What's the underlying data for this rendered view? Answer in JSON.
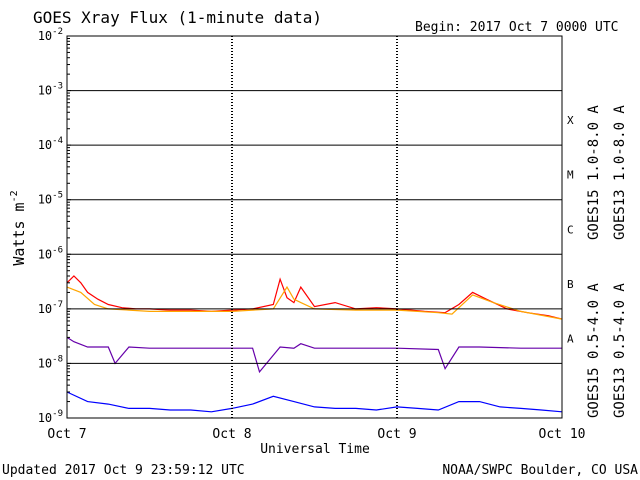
{
  "chart_data": {
    "type": "line",
    "title": "GOES Xray Flux (1-minute data)",
    "begin_label": "Begin:  2017 Oct 7 0000 UTC",
    "xlabel": "Universal Time",
    "ylabel": "Watts m",
    "ylabel_exponent": "-2",
    "y_scale": "log",
    "ylim": [
      1e-09,
      0.01
    ],
    "xlim": [
      "2017-10-07T00:00",
      "2017-10-10T00:00"
    ],
    "x_ticks": [
      {
        "label": "Oct 7",
        "value": "2017-10-07T00:00"
      },
      {
        "label": "Oct 8",
        "value": "2017-10-08T00:00"
      },
      {
        "label": "Oct 9",
        "value": "2017-10-09T00:00"
      },
      {
        "label": "Oct 10",
        "value": "2017-10-10T00:00"
      }
    ],
    "y_ticks": [
      {
        "base": "10",
        "exp": "-2",
        "value": 0.01
      },
      {
        "base": "10",
        "exp": "-3",
        "value": 0.001
      },
      {
        "base": "10",
        "exp": "-4",
        "value": 0.0001
      },
      {
        "base": "10",
        "exp": "-5",
        "value": 1e-05
      },
      {
        "base": "10",
        "exp": "-6",
        "value": 1e-06
      },
      {
        "base": "10",
        "exp": "-7",
        "value": 1e-07
      },
      {
        "base": "10",
        "exp": "-8",
        "value": 1e-08
      },
      {
        "base": "10",
        "exp": "-9",
        "value": 1e-09
      }
    ],
    "flare_classes": [
      {
        "label": "X",
        "value": 0.0001
      },
      {
        "label": "M",
        "value": 1e-05
      },
      {
        "label": "C",
        "value": 1e-06
      },
      {
        "label": "B",
        "value": 1e-07
      },
      {
        "label": "A",
        "value": 1e-08
      }
    ],
    "grid": true,
    "series": [
      {
        "name": "GOES15 1.0-8.0 A",
        "color": "#ff0000",
        "x": [
          "2017-10-07T00:00",
          "2017-10-07T01:00",
          "2017-10-07T02:00",
          "2017-10-07T03:00",
          "2017-10-07T04:30",
          "2017-10-07T06:00",
          "2017-10-07T08:00",
          "2017-10-07T10:00",
          "2017-10-07T12:00",
          "2017-10-07T15:00",
          "2017-10-07T18:00",
          "2017-10-07T21:00",
          "2017-10-08T00:00",
          "2017-10-08T03:00",
          "2017-10-08T06:00",
          "2017-10-08T07:00",
          "2017-10-08T08:00",
          "2017-10-08T09:00",
          "2017-10-08T10:00",
          "2017-10-08T12:00",
          "2017-10-08T15:00",
          "2017-10-08T18:00",
          "2017-10-08T21:00",
          "2017-10-09T00:00",
          "2017-10-09T04:00",
          "2017-10-09T07:00",
          "2017-10-09T09:00",
          "2017-10-09T11:00",
          "2017-10-09T13:00",
          "2017-10-09T16:00",
          "2017-10-09T19:00",
          "2017-10-09T22:00",
          "2017-10-10T00:00"
        ],
        "y": [
          3e-07,
          4e-07,
          3e-07,
          2e-07,
          1.5e-07,
          1.2e-07,
          1.05e-07,
          1e-07,
          1e-07,
          9.5e-08,
          9.5e-08,
          9e-08,
          9.5e-08,
          1e-07,
          1.2e-07,
          3.5e-07,
          1.6e-07,
          1.3e-07,
          2.5e-07,
          1.1e-07,
          1.3e-07,
          1e-07,
          1.05e-07,
          1e-07,
          9e-08,
          8.5e-08,
          1.2e-07,
          2e-07,
          1.5e-07,
          1e-07,
          8.5e-08,
          7.5e-08,
          6.5e-08
        ]
      },
      {
        "name": "GOES13 1.0-8.0 A",
        "color": "#ffa500",
        "x": [
          "2017-10-07T00:00",
          "2017-10-07T02:00",
          "2017-10-07T04:00",
          "2017-10-07T06:00",
          "2017-10-07T09:00",
          "2017-10-07T12:00",
          "2017-10-07T18:00",
          "2017-10-08T00:00",
          "2017-10-08T06:00",
          "2017-10-08T08:00",
          "2017-10-08T09:00",
          "2017-10-08T10:00",
          "2017-10-08T12:00",
          "2017-10-08T18:00",
          "2017-10-09T00:00",
          "2017-10-09T06:00",
          "2017-10-09T08:00",
          "2017-10-09T11:00",
          "2017-10-09T14:00",
          "2017-10-09T18:00",
          "2017-10-10T00:00"
        ],
        "y": [
          2.5e-07,
          2e-07,
          1.2e-07,
          1e-07,
          9.5e-08,
          9e-08,
          9e-08,
          9e-08,
          1e-07,
          2.5e-07,
          1.5e-07,
          1.3e-07,
          1e-07,
          9.5e-08,
          9.5e-08,
          8.5e-08,
          8e-08,
          1.8e-07,
          1.3e-07,
          9e-08,
          6.5e-08
        ]
      },
      {
        "name": "GOES15 0.5-4.0 A",
        "color": "#0000ff",
        "x": [
          "2017-10-07T00:00",
          "2017-10-07T03:00",
          "2017-10-07T06:00",
          "2017-10-07T09:00",
          "2017-10-07T12:00",
          "2017-10-07T15:00",
          "2017-10-07T18:00",
          "2017-10-07T21:00",
          "2017-10-08T00:00",
          "2017-10-08T03:00",
          "2017-10-08T06:00",
          "2017-10-08T09:00",
          "2017-10-08T12:00",
          "2017-10-08T15:00",
          "2017-10-08T18:00",
          "2017-10-08T21:00",
          "2017-10-09T00:00",
          "2017-10-09T03:00",
          "2017-10-09T06:00",
          "2017-10-09T09:00",
          "2017-10-09T12:00",
          "2017-10-09T15:00",
          "2017-10-09T18:00",
          "2017-10-09T21:00",
          "2017-10-10T00:00"
        ],
        "y": [
          3e-09,
          2e-09,
          1.8e-09,
          1.5e-09,
          1.5e-09,
          1.4e-09,
          1.4e-09,
          1.3e-09,
          1.5e-09,
          1.8e-09,
          2.5e-09,
          2e-09,
          1.6e-09,
          1.5e-09,
          1.5e-09,
          1.4e-09,
          1.6e-09,
          1.5e-09,
          1.4e-09,
          2e-09,
          2e-09,
          1.6e-09,
          1.5e-09,
          1.4e-09,
          1.3e-09
        ]
      },
      {
        "name": "GOES13 0.5-4.0 A",
        "color": "#6600aa",
        "x": [
          "2017-10-07T00:00",
          "2017-10-07T01:00",
          "2017-10-07T03:00",
          "2017-10-07T06:00",
          "2017-10-07T07:00",
          "2017-10-07T09:00",
          "2017-10-07T12:00",
          "2017-10-07T18:00",
          "2017-10-08T00:00",
          "2017-10-08T03:00",
          "2017-10-08T04:00",
          "2017-10-08T07:00",
          "2017-10-08T09:00",
          "2017-10-08T10:00",
          "2017-10-08T12:00",
          "2017-10-08T18:00",
          "2017-10-09T00:00",
          "2017-10-09T06:00",
          "2017-10-09T07:00",
          "2017-10-09T09:00",
          "2017-10-09T12:00",
          "2017-10-09T18:00",
          "2017-10-10T00:00"
        ],
        "y": [
          3e-08,
          2.5e-08,
          2e-08,
          2e-08,
          1e-08,
          2e-08,
          1.9e-08,
          1.9e-08,
          1.9e-08,
          1.9e-08,
          7e-09,
          2e-08,
          1.9e-08,
          2.3e-08,
          1.9e-08,
          1.9e-08,
          1.9e-08,
          1.8e-08,
          8e-09,
          2e-08,
          2e-08,
          1.9e-08,
          1.9e-08
        ]
      }
    ]
  },
  "footer": {
    "updated": "Updated 2017 Oct  9 23:59:12 UTC",
    "credit": "NOAA/SWPC Boulder, CO USA"
  }
}
